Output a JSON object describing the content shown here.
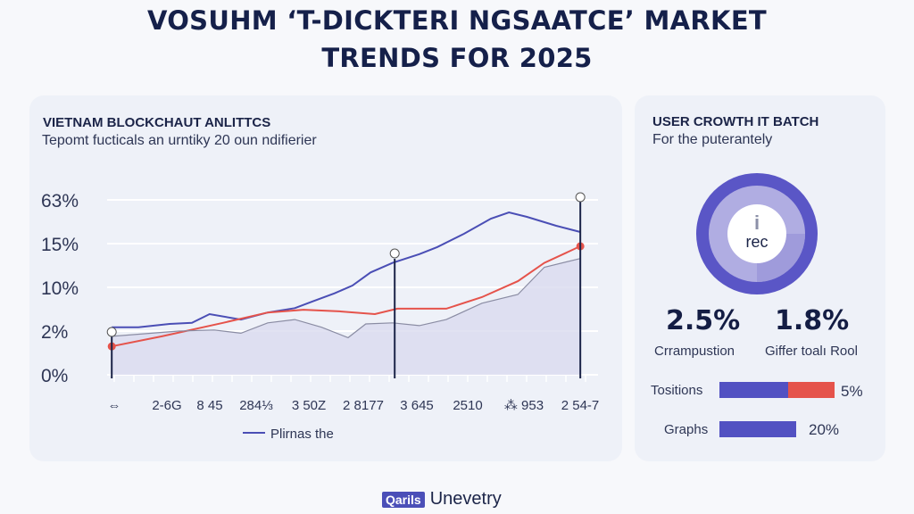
{
  "header": {
    "title_line1": "VOSUHM ‘T-DICKTERI NGSAATCE’ MARKET",
    "title_line2": "TRENDS FOR 2025"
  },
  "left_card": {
    "title": "VIETNAM BLOCKCHAUT ANLITTCS",
    "subtitle": "Tepomt fucticals an urntiky 20 oun ndifierier"
  },
  "chart_data": {
    "type": "line",
    "title": "",
    "xlabel": "",
    "ylabel": "",
    "y_tick_labels": [
      "0%",
      "2%",
      "10%",
      "15%",
      "63%"
    ],
    "y_tick_values": [
      0,
      2,
      10,
      15,
      63
    ],
    "x_tick_labels": [
      "⇔",
      "2-6G",
      "8 45",
      "284⅓",
      "3 50Z",
      "2 8177",
      "3 645",
      "2510",
      "⁂ 953",
      "2 54-7"
    ],
    "grid": true,
    "legend": {
      "position": "bottom",
      "entries": [
        "Plirnas the"
      ]
    },
    "series": [
      {
        "name": "Plirnas the",
        "color": "#4a4eb5",
        "x": [
          0.05,
          0.73,
          1.48,
          2,
          2.38,
          3.05,
          3.56,
          4.07,
          4.39,
          4.8,
          5.13,
          5.47,
          5.88,
          6.4,
          6.75,
          7.25,
          7.73,
          8.05,
          8.37,
          8.89,
          9.32
        ],
        "y": [
          2.7,
          2.7,
          3.3,
          3.5,
          5.1,
          4.1,
          5.4,
          6.2,
          7.4,
          8.9,
          10.2,
          11.7,
          12.8,
          13.8,
          14.6,
          25.8,
          42.4,
          49.3,
          44.4,
          34.6,
          27.7
        ]
      },
      {
        "color": "#e5534b",
        "x": [
          0.05,
          1.3,
          2.67,
          3.56,
          4.23,
          4.89,
          5.55,
          5.97,
          6.93,
          7.57,
          8.21,
          8.68,
          9.32
        ],
        "y": [
          1.3,
          1.76,
          3.5,
          5.4,
          5.9,
          5.6,
          5.1,
          6.1,
          6.1,
          8.2,
          10.7,
          12.8,
          14.7
        ]
      },
      {
        "color": "#8a8ca3",
        "area": true,
        "x": [
          0.05,
          1.69,
          2.48,
          3.05,
          3.56,
          4.07,
          4.56,
          5.05,
          5.38,
          5.88,
          6.4,
          6.93,
          7.57,
          8.21,
          8.68,
          9.32
        ],
        "y": [
          1.76,
          2,
          2.2,
          1.9,
          3.5,
          4.1,
          2.7,
          1.7,
          3.3,
          3.5,
          3.0,
          4.1,
          7.1,
          8.7,
          12.3,
          13.3
        ]
      }
    ],
    "markers_at_x": [
      0.05,
      5.92,
      9.32
    ]
  },
  "right_card": {
    "title": "USER CROWTH IT BATCH",
    "subtitle": "For the puterantely",
    "donut": {
      "center_icon": "i",
      "center_text": "rec",
      "light_fraction": 0.55,
      "colors": {
        "outer": "#5a56c6",
        "inner": "#b0ade2",
        "inner_dark": "#9f9bdb"
      }
    },
    "stats": [
      {
        "value": "2.5%",
        "label": "Crrampustion"
      },
      {
        "value": "1.8%",
        "label": "Giffer toalı Rool"
      }
    ],
    "bars": [
      {
        "label": "Tositions",
        "value": "5%",
        "segments": [
          {
            "fraction": 0.6,
            "color": "#5251c2"
          },
          {
            "fraction": 0.4,
            "color": "#e5534b"
          }
        ]
      },
      {
        "label": "Graphs",
        "value": "20%",
        "segments": [
          {
            "fraction": 1.0,
            "color": "#5251c2"
          }
        ]
      }
    ]
  },
  "footer": {
    "logo_text": "Qarils",
    "text": "Unevetry"
  }
}
